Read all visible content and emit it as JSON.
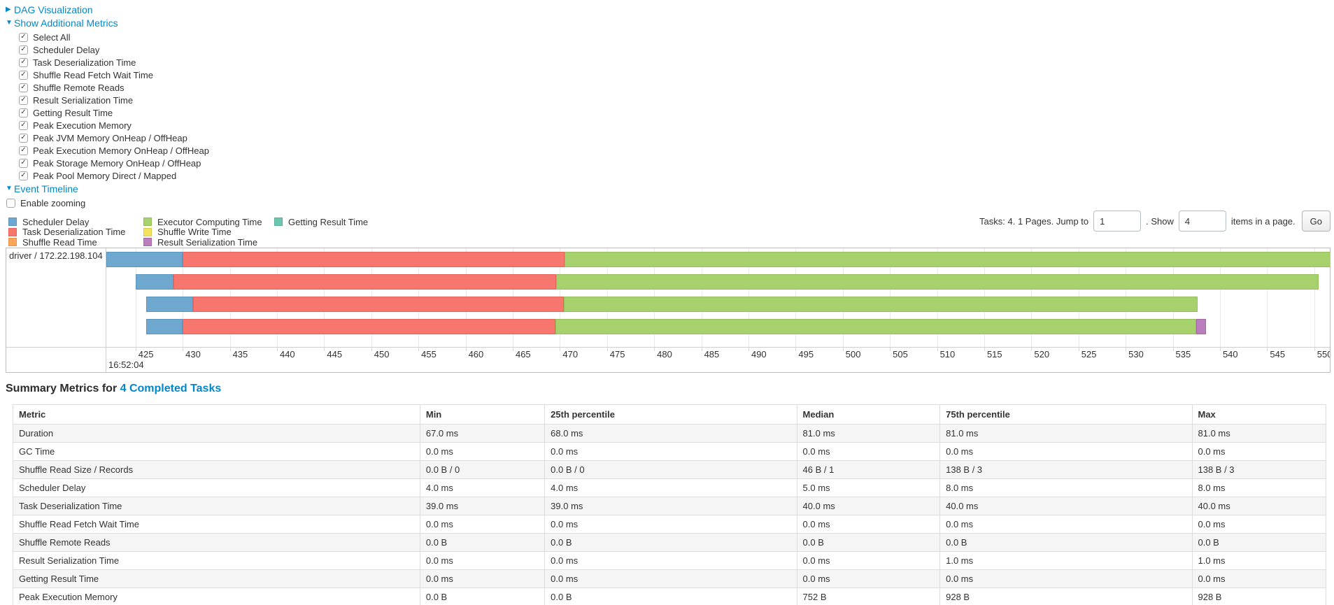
{
  "sections": {
    "dag_link": "DAG Visualization",
    "metrics_link": "Show Additional Metrics",
    "timeline_link": "Event Timeline"
  },
  "metrics_checkboxes": [
    "Select All",
    "Scheduler Delay",
    "Task Deserialization Time",
    "Shuffle Read Fetch Wait Time",
    "Shuffle Remote Reads",
    "Result Serialization Time",
    "Getting Result Time",
    "Peak Execution Memory",
    "Peak JVM Memory OnHeap / OffHeap",
    "Peak Execution Memory OnHeap / OffHeap",
    "Peak Storage Memory OnHeap / OffHeap",
    "Peak Pool Memory Direct / Mapped"
  ],
  "enable_zooming_label": "Enable zooming",
  "pagination": {
    "prefix": "Tasks: 4. 1 Pages. Jump to",
    "jump_value": "1",
    "mid": ". Show",
    "show_value": "4",
    "suffix": "items in a page.",
    "go_label": "Go"
  },
  "chart_data": {
    "type": "timeline-gantt",
    "group_label": "driver / 172.22.198.104",
    "axis": {
      "start": 421.9,
      "end": 551.65,
      "ticks": [
        425,
        430,
        435,
        440,
        445,
        450,
        455,
        460,
        465,
        470,
        475,
        480,
        485,
        490,
        495,
        500,
        505,
        510,
        515,
        520,
        525,
        530,
        535,
        540,
        545,
        550
      ],
      "major_label": "16:52:04",
      "units": "milliseconds within second 16:52:04"
    },
    "colors": {
      "scheduler_delay": {
        "label": "Scheduler Delay",
        "fill": "#6FA8CE",
        "border": "#5A96BF"
      },
      "task_deserialization": {
        "label": "Task Deserialization Time",
        "fill": "#F7766D",
        "border": "#E5655D"
      },
      "shuffle_read": {
        "label": "Shuffle Read Time",
        "fill": "#F9A65B",
        "border": "#E8954A"
      },
      "executor_computing": {
        "label": "Executor Computing Time",
        "fill": "#A7D16C",
        "border": "#93BF58"
      },
      "shuffle_write": {
        "label": "Shuffle Write Time",
        "fill": "#F2E25D",
        "border": "#DCCB4B"
      },
      "result_serialization": {
        "label": "Result Serialization Time",
        "fill": "#BB7EBD",
        "border": "#A768A9"
      },
      "getting_result": {
        "label": "Getting Result Time",
        "fill": "#6DC5B0",
        "border": "#58B19C"
      }
    },
    "legend_columns": [
      [
        "scheduler_delay",
        "task_deserialization",
        "shuffle_read"
      ],
      [
        "executor_computing",
        "shuffle_write",
        "result_serialization"
      ],
      [
        "getting_result"
      ]
    ],
    "rows": [
      {
        "segments": [
          {
            "name": "scheduler_delay",
            "start": 421.9,
            "end": 430.0
          },
          {
            "name": "task_deserialization",
            "start": 430.0,
            "end": 470.5
          },
          {
            "name": "executor_computing",
            "start": 470.5,
            "end": 551.7
          }
        ]
      },
      {
        "segments": [
          {
            "name": "scheduler_delay",
            "start": 425.0,
            "end": 429.0
          },
          {
            "name": "task_deserialization",
            "start": 429.0,
            "end": 469.6
          },
          {
            "name": "executor_computing",
            "start": 469.6,
            "end": 550.5
          }
        ]
      },
      {
        "segments": [
          {
            "name": "scheduler_delay",
            "start": 426.1,
            "end": 431.1
          },
          {
            "name": "task_deserialization",
            "start": 431.1,
            "end": 470.4
          },
          {
            "name": "executor_computing",
            "start": 470.4,
            "end": 537.6
          }
        ]
      },
      {
        "segments": [
          {
            "name": "scheduler_delay",
            "start": 426.1,
            "end": 430.0
          },
          {
            "name": "task_deserialization",
            "start": 430.0,
            "end": 469.5
          },
          {
            "name": "executor_computing",
            "start": 469.5,
            "end": 537.5
          },
          {
            "name": "result_serialization",
            "start": 537.5,
            "end": 538.5
          }
        ]
      }
    ]
  },
  "summary": {
    "title_prefix": "Summary Metrics for ",
    "title_link": "4 Completed Tasks",
    "table": {
      "headers": [
        "Metric",
        "Min",
        "25th percentile",
        "Median",
        "75th percentile",
        "Max"
      ],
      "col_widths_pct": [
        31.0,
        9.5,
        19.2,
        10.9,
        19.2,
        10.2
      ],
      "rows": [
        {
          "metric": "Duration",
          "values": [
            "67.0 ms",
            "68.0 ms",
            "81.0 ms",
            "81.0 ms",
            "81.0 ms"
          ]
        },
        {
          "metric": "GC Time",
          "values": [
            "0.0 ms",
            "0.0 ms",
            "0.0 ms",
            "0.0 ms",
            "0.0 ms"
          ]
        },
        {
          "metric": "Shuffle Read Size / Records",
          "values": [
            "0.0 B / 0",
            "0.0 B / 0",
            "46 B / 1",
            "138 B / 3",
            "138 B / 3"
          ]
        },
        {
          "metric": "Scheduler Delay",
          "values": [
            "4.0 ms",
            "4.0 ms",
            "5.0 ms",
            "8.0 ms",
            "8.0 ms"
          ]
        },
        {
          "metric": "Task Deserialization Time",
          "values": [
            "39.0 ms",
            "39.0 ms",
            "40.0 ms",
            "40.0 ms",
            "40.0 ms"
          ]
        },
        {
          "metric": "Shuffle Read Fetch Wait Time",
          "values": [
            "0.0 ms",
            "0.0 ms",
            "0.0 ms",
            "0.0 ms",
            "0.0 ms"
          ]
        },
        {
          "metric": "Shuffle Remote Reads",
          "values": [
            "0.0 B",
            "0.0 B",
            "0.0 B",
            "0.0 B",
            "0.0 B"
          ]
        },
        {
          "metric": "Result Serialization Time",
          "values": [
            "0.0 ms",
            "0.0 ms",
            "0.0 ms",
            "1.0 ms",
            "1.0 ms"
          ]
        },
        {
          "metric": "Getting Result Time",
          "values": [
            "0.0 ms",
            "0.0 ms",
            "0.0 ms",
            "0.0 ms",
            "0.0 ms"
          ]
        },
        {
          "metric": "Peak Execution Memory",
          "values": [
            "0.0 B",
            "0.0 B",
            "752 B",
            "928 B",
            "928 B"
          ]
        }
      ]
    }
  }
}
